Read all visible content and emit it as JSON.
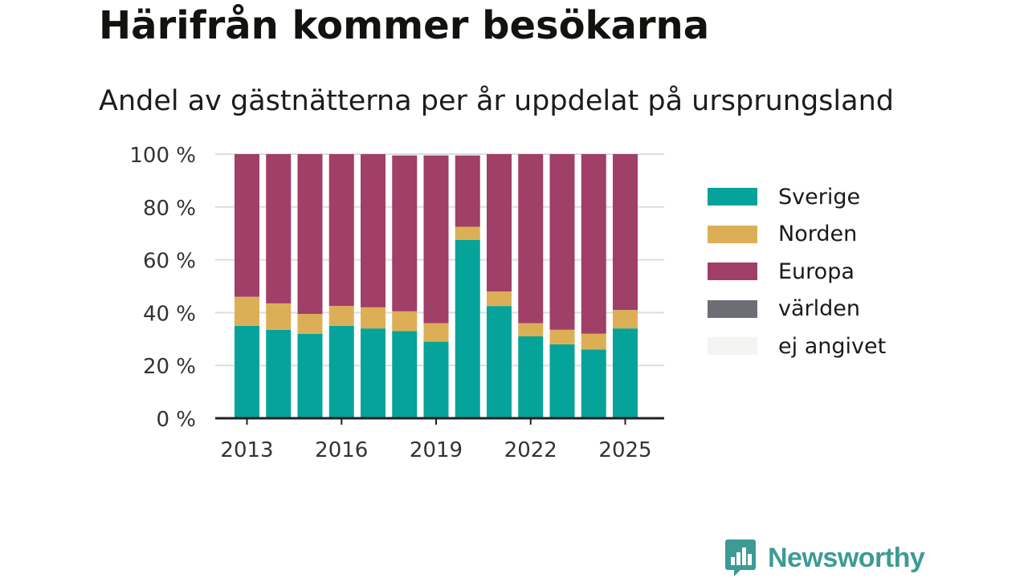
{
  "title": "Härifrån kommer besökarna",
  "subtitle": "Andel av gästnätterna per år uppdelat på ursprungsland",
  "brand": {
    "name": "Newsworthy",
    "icon": "bar-chart-speech-bubble-icon"
  },
  "colors": {
    "Sverige": "#06a39a",
    "Norden": "#dcaf57",
    "Europa": "#a03f67",
    "världen": "#6d6e75",
    "ej angivet": "#f4f4f2",
    "grid": "#dddddd",
    "axis": "#222222"
  },
  "legend": [
    "Sverige",
    "Norden",
    "Europa",
    "världen",
    "ej angivet"
  ],
  "chart_data": {
    "type": "bar",
    "stacked": true,
    "title": "Härifrån kommer besökarna",
    "subtitle": "Andel av gästnätterna per år uppdelat på ursprungsland",
    "x": [
      2013,
      2014,
      2015,
      2016,
      2017,
      2018,
      2019,
      2020,
      2021,
      2022,
      2023,
      2024,
      2025
    ],
    "x_ticks": [
      "2013",
      "2016",
      "2019",
      "2022",
      "2025"
    ],
    "y_ticks": [
      "0 %",
      "20 %",
      "40 %",
      "60 %",
      "80 %",
      "100 %"
    ],
    "ylim": [
      0,
      100
    ],
    "grid": true,
    "legend_position": "right",
    "series": [
      {
        "name": "Sverige",
        "values": [
          35,
          33.5,
          32,
          35,
          34,
          33,
          29,
          67.5,
          42.5,
          31,
          28,
          26,
          34
        ]
      },
      {
        "name": "Norden",
        "values": [
          11,
          10,
          7.5,
          7.5,
          8,
          7.5,
          7,
          5,
          5.5,
          5,
          5.5,
          6,
          7
        ]
      },
      {
        "name": "Europa",
        "values": [
          54,
          56.5,
          60.5,
          57.5,
          58,
          59,
          63.5,
          27,
          52,
          64,
          66.5,
          68,
          59
        ]
      },
      {
        "name": "världen",
        "values": [
          0,
          0,
          0,
          0,
          0,
          0,
          0,
          0,
          0,
          0,
          0,
          0,
          0
        ]
      },
      {
        "name": "ej angivet",
        "values": [
          0,
          0,
          0,
          0,
          0,
          0,
          0,
          0,
          0,
          0,
          0,
          0,
          0
        ]
      }
    ]
  }
}
